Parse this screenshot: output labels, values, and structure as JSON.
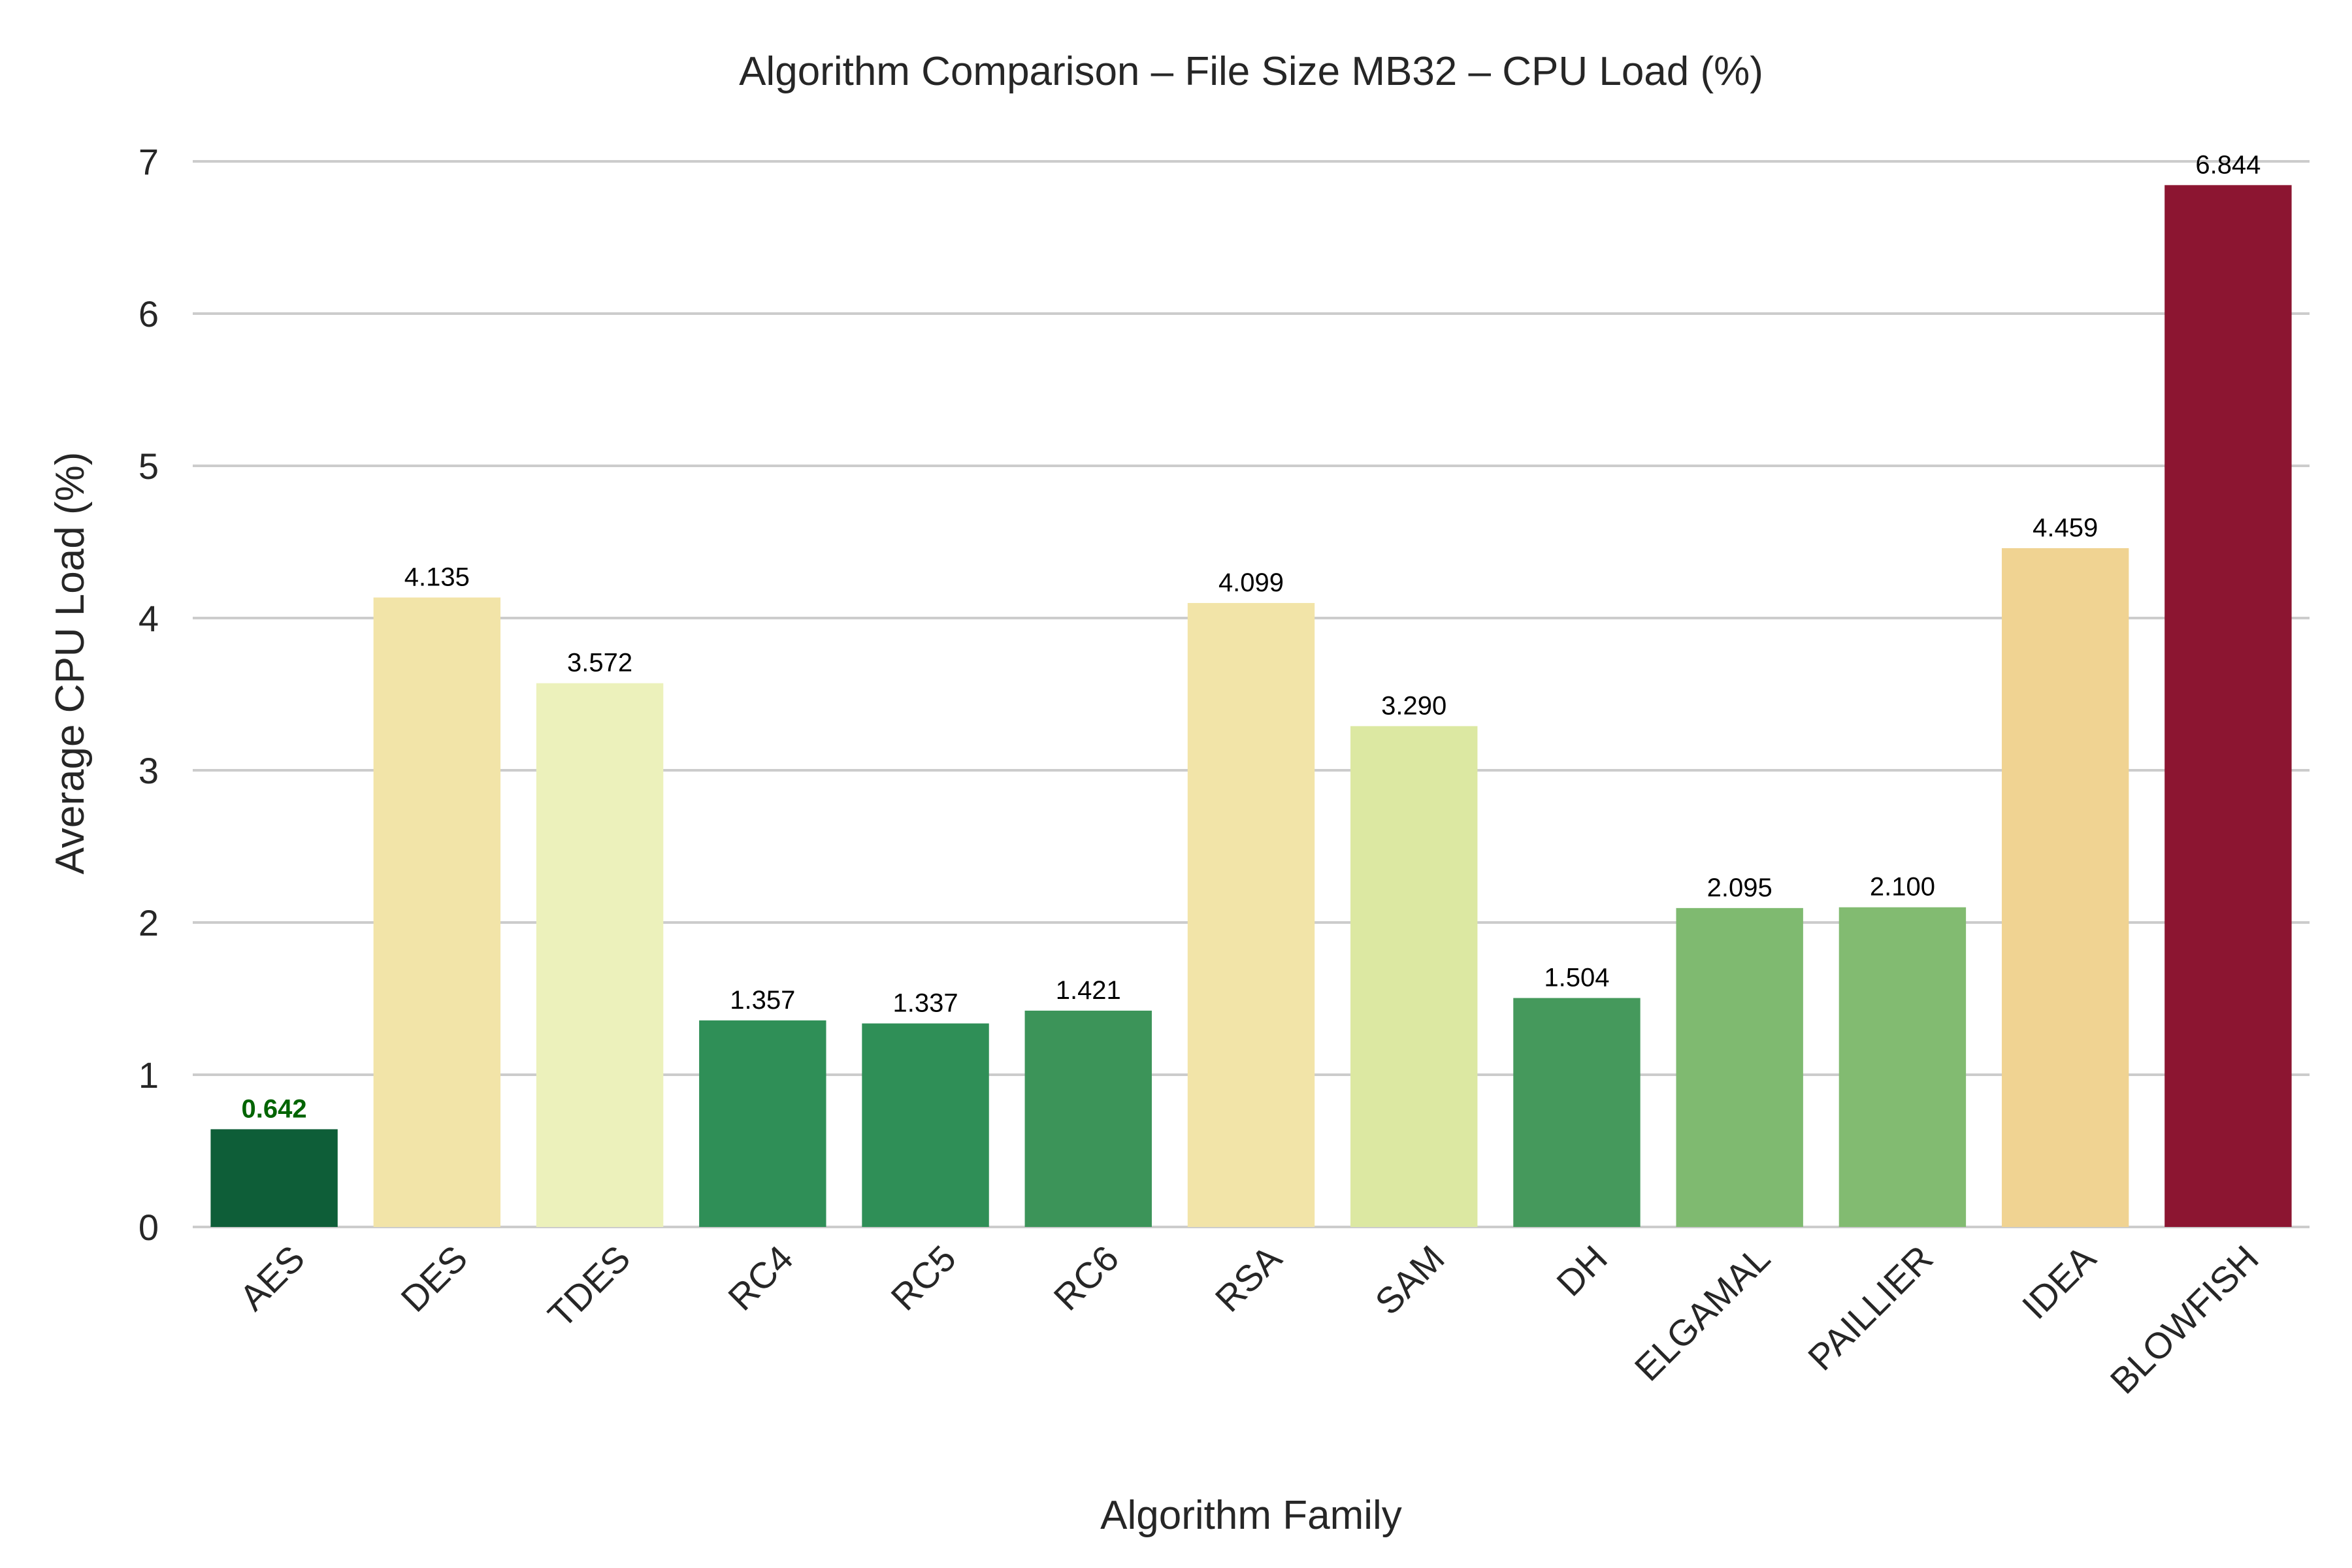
{
  "chart_data": {
    "type": "bar",
    "title": "Algorithm Comparison – File Size MB32 – CPU Load (%)",
    "xlabel": "Algorithm Family",
    "ylabel": "Average CPU Load (%)",
    "ylim": [
      0,
      7
    ],
    "yticks": [
      "0",
      "1",
      "2",
      "3",
      "4",
      "5",
      "6",
      "7"
    ],
    "grid": "horizontal",
    "categories": [
      "AES",
      "DES",
      "TDES",
      "RC4",
      "RC5",
      "RC6",
      "RSA",
      "SAM",
      "DH",
      "ELGAMAL",
      "PAILLIER",
      "IDEA",
      "BLOWFISH"
    ],
    "values": [
      0.642,
      4.135,
      3.572,
      1.357,
      1.337,
      1.421,
      4.099,
      3.29,
      1.504,
      2.095,
      2.1,
      4.459,
      6.844
    ],
    "value_labels": [
      "0.642",
      "4.135",
      "3.572",
      "1.357",
      "1.337",
      "1.421",
      "4.099",
      "3.290",
      "1.504",
      "2.095",
      "2.100",
      "4.459",
      "6.844"
    ],
    "colors": [
      "#0e5e38",
      "#f2e4a8",
      "#ecf1bb",
      "#2f8f57",
      "#2f8f57",
      "#3c9459",
      "#f2e4a8",
      "#dce8a2",
      "#45995c",
      "#7fba70",
      "#82bb71",
      "#f0d392",
      "#8c1531"
    ],
    "highlight": {
      "category": "AES",
      "label_color": "#006400"
    }
  }
}
